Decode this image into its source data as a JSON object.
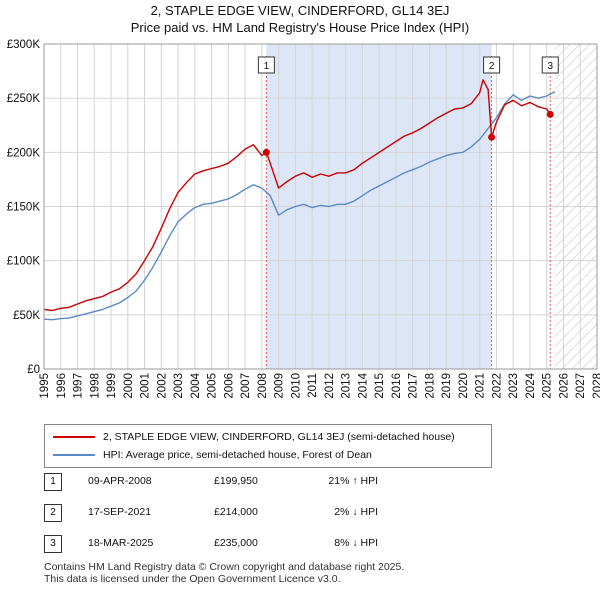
{
  "chart_title": "2, STAPLE EDGE VIEW, CINDERFORD, GL14 3EJ",
  "chart_subtitle": "Price paid vs. HM Land Registry's House Price Index (HPI)",
  "colors": {
    "property": "#cc0000",
    "hpi": "#5b8ac6",
    "shade": "#dde6f7",
    "marker_line": "#e06060"
  },
  "legend": {
    "property": "2, STAPLE EDGE VIEW, CINDERFORD, GL14 3EJ (semi-detached house)",
    "hpi": "HPI: Average price, semi-detached house, Forest of Dean"
  },
  "transactions": [
    {
      "num": "1",
      "date": "09-APR-2008",
      "price": "£199,950",
      "hpi": "21% ↑ HPI"
    },
    {
      "num": "2",
      "date": "17-SEP-2021",
      "price": "£214,000",
      "hpi": "2% ↓ HPI"
    },
    {
      "num": "3",
      "date": "18-MAR-2025",
      "price": "£235,000",
      "hpi": "8% ↓ HPI"
    }
  ],
  "footer": {
    "line1": "Contains HM Land Registry data © Crown copyright and database right 2025.",
    "line2": "This data is licensed under the Open Government Licence v3.0."
  },
  "chart_data": {
    "type": "line",
    "title": "2, STAPLE EDGE VIEW, CINDERFORD, GL14 3EJ",
    "subtitle": "Price paid vs. HM Land Registry's House Price Index (HPI)",
    "xlim": [
      1995,
      2028
    ],
    "ylim": [
      0,
      300000
    ],
    "y_ticks": [
      0,
      50000,
      100000,
      150000,
      200000,
      250000,
      300000
    ],
    "y_tick_labels": [
      "£0",
      "£50K",
      "£100K",
      "£150K",
      "£200K",
      "£250K",
      "£300K"
    ],
    "x_ticks": [
      1995,
      1996,
      1997,
      1998,
      1999,
      2000,
      2001,
      2002,
      2003,
      2004,
      2005,
      2006,
      2007,
      2008,
      2009,
      2010,
      2011,
      2012,
      2013,
      2014,
      2015,
      2016,
      2017,
      2018,
      2019,
      2020,
      2021,
      2022,
      2023,
      2024,
      2025,
      2026,
      2027,
      2028
    ],
    "x_tick_labels": [
      "1995",
      "1996",
      "1997",
      "1998",
      "1999",
      "2000",
      "2001",
      "2002",
      "2003",
      "2004",
      "2005",
      "2006",
      "2007",
      "2008",
      "2009",
      "2010",
      "2011",
      "2012",
      "2013",
      "2014",
      "2015",
      "2016",
      "2017",
      "2018",
      "2019",
      "2020",
      "2021",
      "2022",
      "2023",
      "2024",
      "2025",
      "2026",
      "2027",
      "2028"
    ],
    "grid": true,
    "shaded_period": [
      2008.27,
      2021.71
    ],
    "future_hatch_from": 2025.5,
    "sale_markers": [
      {
        "label": "1",
        "x": 2008.27,
        "y": 199950
      },
      {
        "label": "2",
        "x": 2021.71,
        "y": 214000
      },
      {
        "label": "3",
        "x": 2025.21,
        "y": 235000
      }
    ],
    "series": [
      {
        "name": "2, STAPLE EDGE VIEW, CINDERFORD, GL14 3EJ (semi-detached house)",
        "x": [
          1995,
          1995.5,
          1996,
          1996.5,
          1997,
          1997.5,
          1998,
          1998.5,
          1999,
          1999.5,
          2000,
          2000.5,
          2001,
          2001.5,
          2002,
          2002.5,
          2003,
          2003.5,
          2004,
          2004.5,
          2005,
          2005.5,
          2006,
          2006.5,
          2007,
          2007.5,
          2008,
          2008.27,
          2008.5,
          2009,
          2009.5,
          2010,
          2010.5,
          2011,
          2011.5,
          2012,
          2012.5,
          2013,
          2013.5,
          2014,
          2014.5,
          2015,
          2015.5,
          2016,
          2016.5,
          2017,
          2017.5,
          2018,
          2018.5,
          2019,
          2019.5,
          2020,
          2020.5,
          2021,
          2021.2,
          2021.5,
          2021.71,
          2022,
          2022.5,
          2023,
          2023.5,
          2024,
          2024.5,
          2025,
          2025.21
        ],
        "values": [
          55000,
          54000,
          56000,
          57000,
          60000,
          63000,
          65000,
          67000,
          71000,
          74000,
          80000,
          88000,
          100000,
          113000,
          130000,
          148000,
          163000,
          172000,
          180000,
          183000,
          185000,
          187000,
          190000,
          196000,
          203000,
          207000,
          197000,
          199950,
          190000,
          167000,
          173000,
          178000,
          181000,
          177000,
          180000,
          178000,
          181000,
          181000,
          184000,
          190000,
          195000,
          200000,
          205000,
          210000,
          215000,
          218000,
          222000,
          227000,
          232000,
          236000,
          240000,
          241000,
          245000,
          255000,
          267000,
          258000,
          214000,
          228000,
          244000,
          248000,
          243000,
          246000,
          242000,
          240000,
          235000
        ]
      },
      {
        "name": "HPI: Average price, semi-detached house, Forest of Dean",
        "x": [
          1995,
          1995.5,
          1996,
          1996.5,
          1997,
          1997.5,
          1998,
          1998.5,
          1999,
          1999.5,
          2000,
          2000.5,
          2001,
          2001.5,
          2002,
          2002.5,
          2003,
          2003.5,
          2004,
          2004.5,
          2005,
          2005.5,
          2006,
          2006.5,
          2007,
          2007.5,
          2008,
          2008.5,
          2009,
          2009.5,
          2010,
          2010.5,
          2011,
          2011.5,
          2012,
          2012.5,
          2013,
          2013.5,
          2014,
          2014.5,
          2015,
          2015.5,
          2016,
          2016.5,
          2017,
          2017.5,
          2018,
          2018.5,
          2019,
          2019.5,
          2020,
          2020.5,
          2021,
          2021.5,
          2022,
          2022.5,
          2023,
          2023.5,
          2024,
          2024.5,
          2025,
          2025.5
        ],
        "values": [
          46000,
          45500,
          46500,
          47000,
          49000,
          51000,
          53000,
          55000,
          58000,
          61000,
          66000,
          72000,
          82000,
          94000,
          108000,
          123000,
          136000,
          143000,
          149000,
          152000,
          153000,
          155000,
          157000,
          161000,
          166000,
          170000,
          167000,
          160000,
          142000,
          147000,
          150000,
          152000,
          149000,
          151000,
          150000,
          152000,
          152000,
          155000,
          160000,
          165000,
          169000,
          173000,
          177000,
          181000,
          184000,
          187000,
          191000,
          194000,
          197000,
          199000,
          200000,
          205000,
          212000,
          222000,
          232000,
          245000,
          253000,
          248000,
          252000,
          250000,
          252000,
          256000
        ]
      }
    ]
  }
}
